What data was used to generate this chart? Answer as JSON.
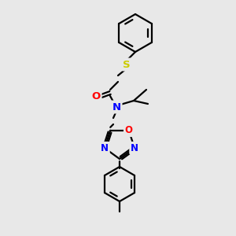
{
  "background_color": "#e8e8e8",
  "bond_color": "#000000",
  "bond_width": 1.6,
  "atom_colors": {
    "S": "#cccc00",
    "O_carbonyl": "#ff0000",
    "N": "#0000ff",
    "O_ring": "#ff0000",
    "C": "#000000"
  },
  "font_size_atoms": 8.5,
  "figsize": [
    3.0,
    3.0
  ],
  "dpi": 100
}
